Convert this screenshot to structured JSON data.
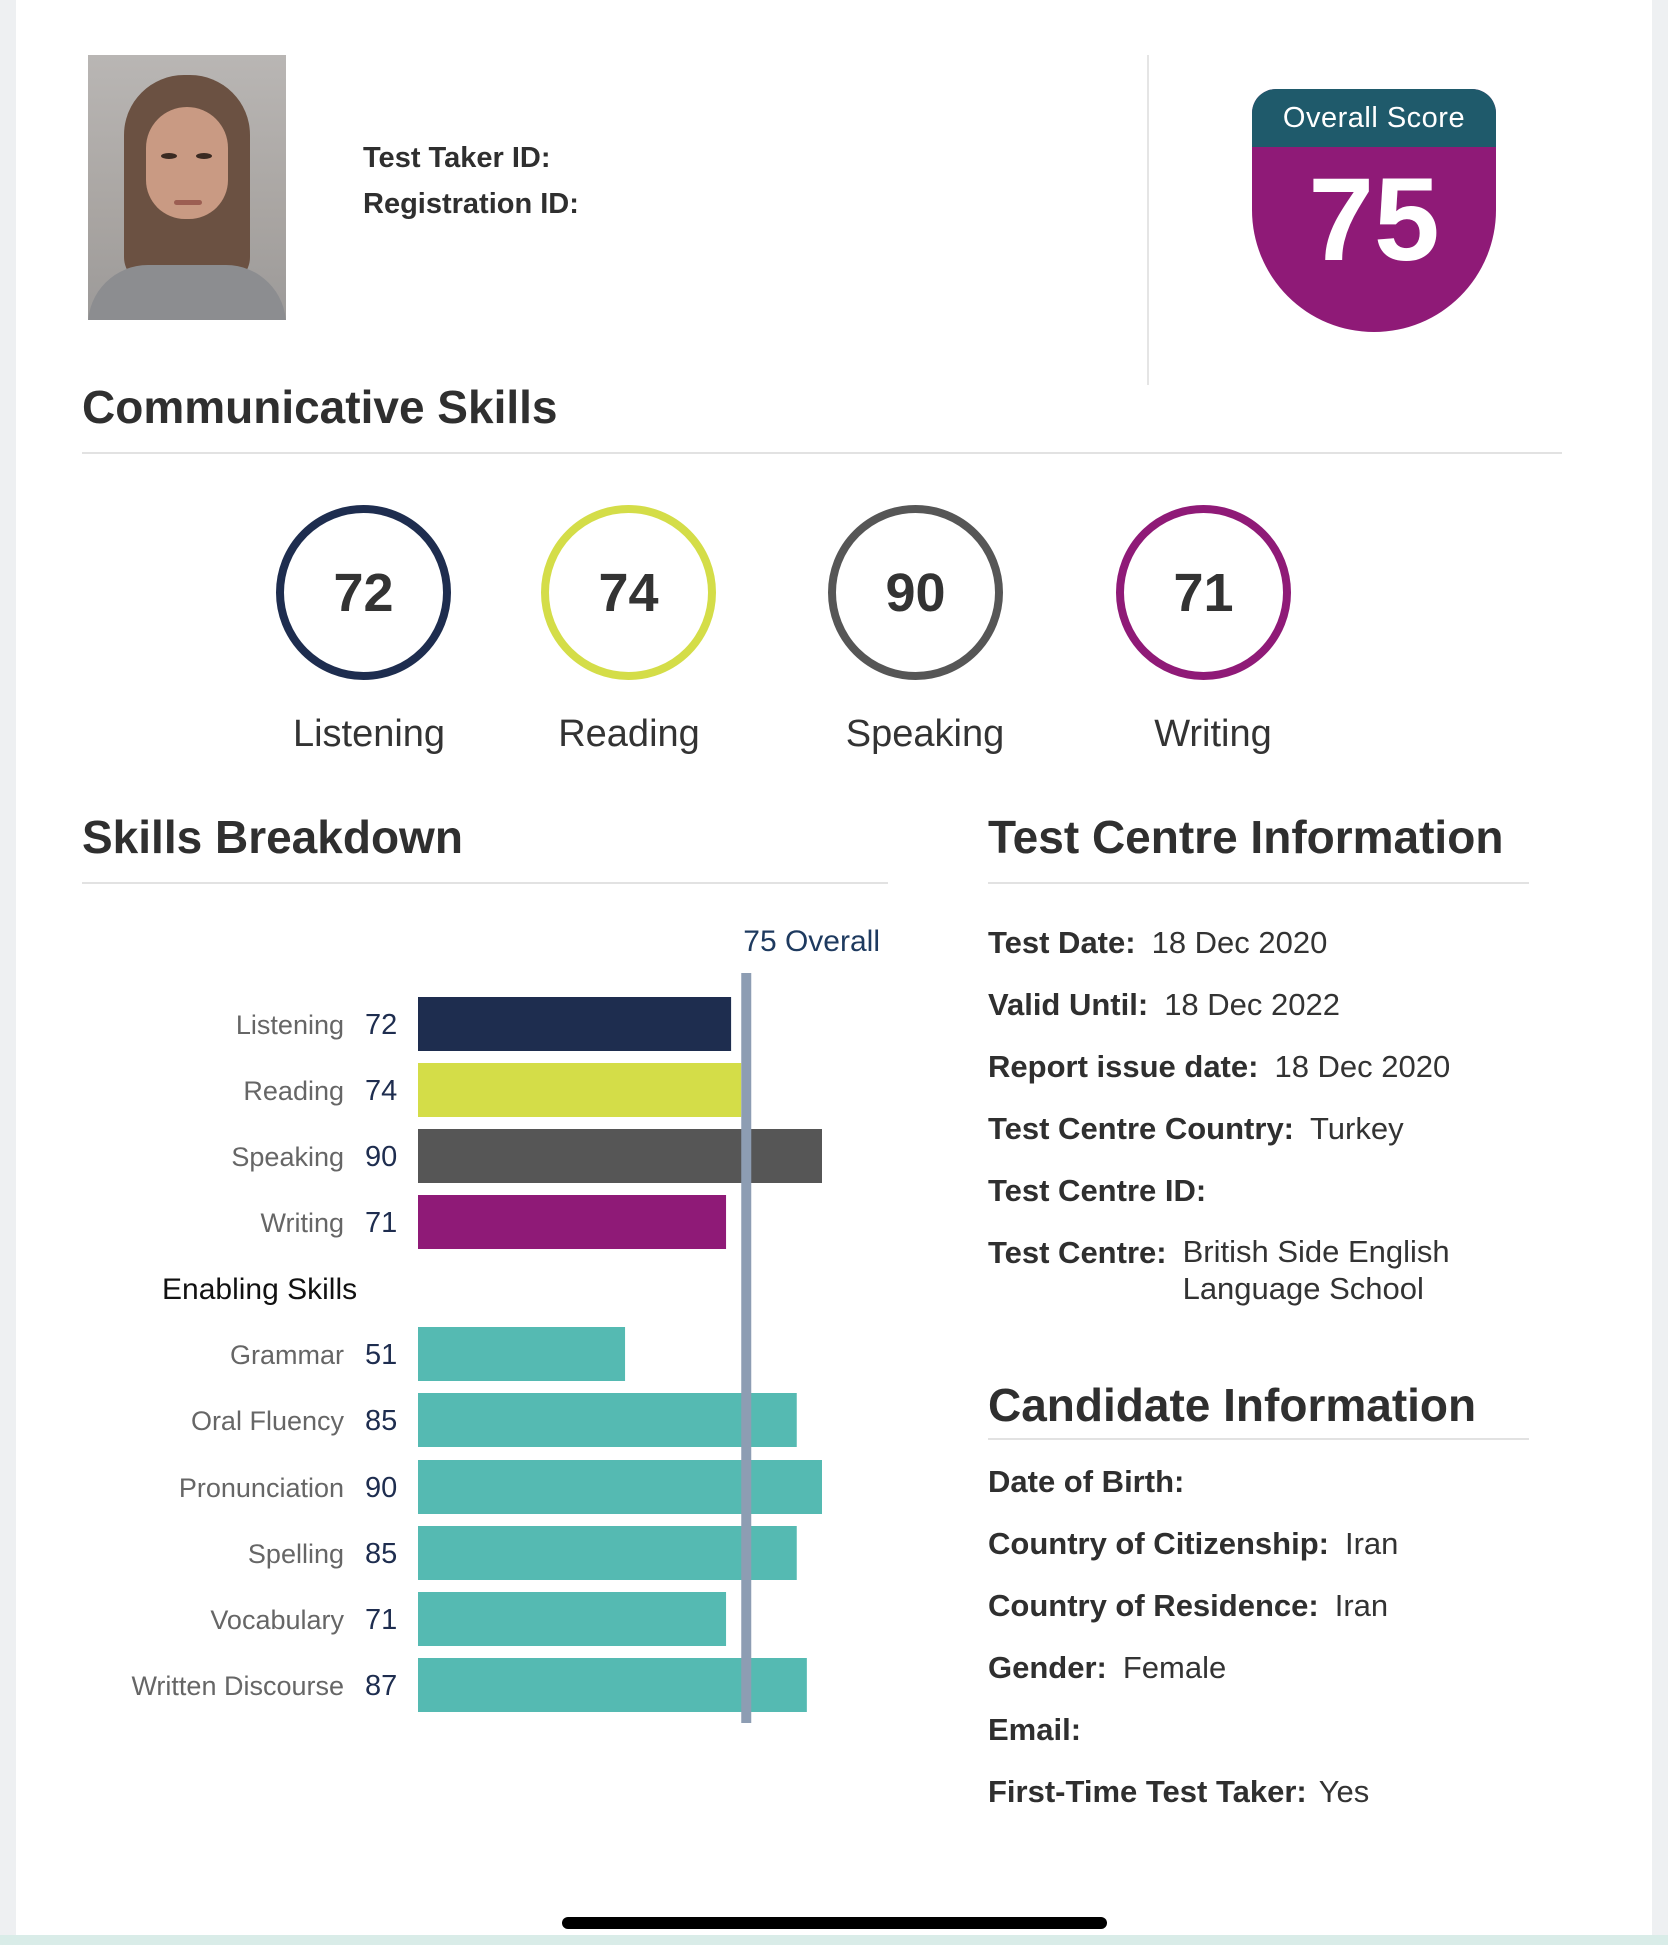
{
  "header": {
    "test_taker_id_label": "Test Taker ID:",
    "registration_id_label": "Registration ID:"
  },
  "overall": {
    "label": "Overall Score",
    "score": "75"
  },
  "communicative": {
    "title": "Communicative Skills",
    "skills": [
      {
        "score": "72",
        "label": "Listening",
        "color": "#1e2d4f"
      },
      {
        "score": "74",
        "label": "Reading",
        "color": "#d4dd48"
      },
      {
        "score": "90",
        "label": "Speaking",
        "color": "#565656"
      },
      {
        "score": "71",
        "label": "Writing",
        "color": "#8f1a77"
      }
    ]
  },
  "breakdown": {
    "title": "Skills Breakdown",
    "overall_marker": "75 Overall",
    "enabling_title": "Enabling Skills"
  },
  "chart_data": {
    "type": "bar",
    "orientation": "horizontal",
    "xlim": [
      10,
      90
    ],
    "reference_line": {
      "value": 75,
      "label": "75 Overall"
    },
    "groups": [
      {
        "name": "Communicative Skills",
        "categories": [
          "Listening",
          "Reading",
          "Speaking",
          "Writing"
        ],
        "values": [
          72,
          74,
          90,
          71
        ],
        "colors": [
          "#1e2d4f",
          "#d4dd48",
          "#565656",
          "#8f1a77"
        ]
      },
      {
        "name": "Enabling Skills",
        "categories": [
          "Grammar",
          "Oral Fluency",
          "Pronunciation",
          "Spelling",
          "Vocabulary",
          "Written Discourse"
        ],
        "values": [
          51,
          85,
          90,
          85,
          71,
          87
        ],
        "colors": [
          "#55bab2",
          "#55bab2",
          "#55bab2",
          "#55bab2",
          "#55bab2",
          "#55bab2"
        ]
      }
    ]
  },
  "test_centre": {
    "title": "Test Centre Information",
    "rows": [
      {
        "label": "Test Date:",
        "value": "18 Dec 2020"
      },
      {
        "label": "Valid Until:",
        "value": "18 Dec 2022"
      },
      {
        "label": "Report issue date:",
        "value": "18 Dec 2020"
      },
      {
        "label": "Test Centre Country:",
        "value": "Turkey"
      },
      {
        "label": "Test Centre ID:",
        "value": ""
      },
      {
        "label": "Test Centre:",
        "value": "British Side English",
        "value2": "Language School"
      }
    ]
  },
  "candidate": {
    "title": "Candidate Information",
    "rows": [
      {
        "label": "Date of Birth:",
        "value": ""
      },
      {
        "label": "Country of Citizenship:",
        "value": "Iran"
      },
      {
        "label": "Country of Residence:",
        "value": "Iran"
      },
      {
        "label": "Gender:",
        "value": "Female"
      },
      {
        "label": "Email:",
        "value": ""
      },
      {
        "label": "First-Time Test Taker:",
        "value": "Yes"
      }
    ]
  }
}
